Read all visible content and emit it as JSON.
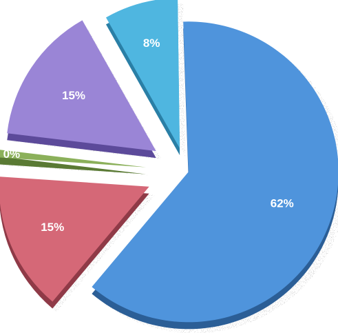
{
  "chart_data": {
    "type": "pie",
    "exploded": true,
    "style": "3d",
    "slices": [
      {
        "label": "62%",
        "value": 62,
        "color": "#4f94dc",
        "side_color": "#2b5e96"
      },
      {
        "label": "15%",
        "value": 15,
        "color": "#d56877",
        "side_color": "#8f3a47"
      },
      {
        "label": "0%",
        "value": 0.5,
        "color": "#8bb05a",
        "side_color": "#5a7a34"
      },
      {
        "label": "15%",
        "value": 15,
        "color": "#9a85d6",
        "side_color": "#5c4a9a"
      },
      {
        "label": "8%",
        "value": 8,
        "color": "#4fb6e0",
        "side_color": "#2a7fa6"
      }
    ]
  }
}
